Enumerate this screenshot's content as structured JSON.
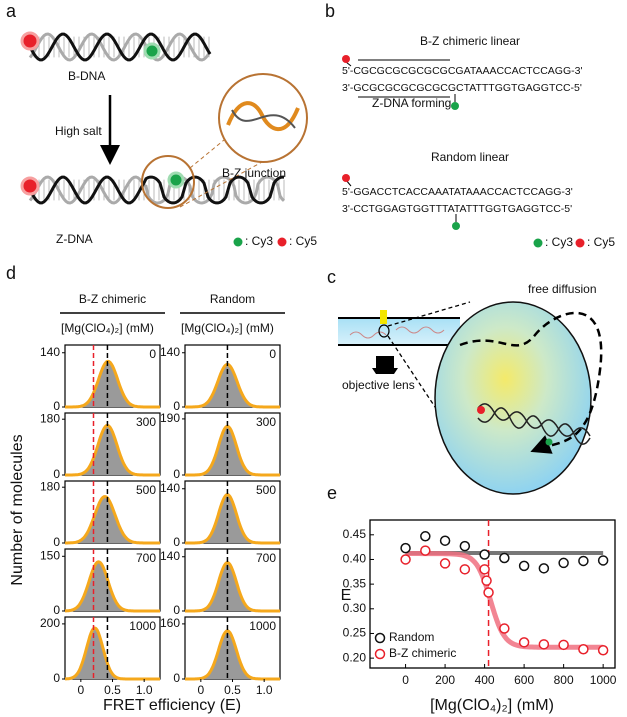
{
  "panel_a": {
    "label": "a",
    "top_dna": "B-DNA",
    "arrow_label": "High salt",
    "zoom_label": "B-Z junction",
    "bottom_dna": "Z-DNA",
    "legend": [
      ": Cy3",
      ": Cy5"
    ]
  },
  "panel_b": {
    "label": "b",
    "chimeric_title": "B-Z chimeric linear",
    "chimeric_top": "5'-CGCGCGCGCGCGCGATAAACCACTCCAGG-3'",
    "chimeric_bottom": "3'-GCGCGCGCGCGCGCTATTTGGTGAGGTCC-5'",
    "z_forming": "Z-DNA forming",
    "random_title": "Random linear",
    "random_top": "5'-GGACCTCACCAAATATAAACCACTCCAGG-3'",
    "random_bottom": "3'-CCTGGAGTGGTTTATATTTGGTGAGGTCC-5'",
    "legend": [
      ": Cy3",
      ": Cy5"
    ]
  },
  "panel_c": {
    "label": "c",
    "title": "free diffusion",
    "lens": "objective lens"
  },
  "panel_d": {
    "label": "d",
    "y_title": "Number of molecules",
    "x_title": "FRET efficiency (E)",
    "xlim": [
      -0.25,
      1.25
    ],
    "xticks": [
      0,
      0.5,
      {
        "value": 1,
        "label": "1.0"
      }
    ],
    "columns": [
      {
        "title": "B-Z chimeric",
        "conc_label": "[Mg(ClO₄)₂] (mM)",
        "black_line": 0.42,
        "red_line": 0.2,
        "plots": [
          {
            "conc": 0,
            "ylim": [
              0,
              160
            ],
            "yticks": [
              0,
              140
            ],
            "mean": 0.43,
            "sigma": 0.15,
            "peak": 118
          },
          {
            "conc": 300,
            "ylim": [
              0,
              200
            ],
            "yticks": [
              0,
              180
            ],
            "mean": 0.42,
            "sigma": 0.15,
            "peak": 160
          },
          {
            "conc": 500,
            "ylim": [
              0,
              200
            ],
            "yticks": [
              0,
              180
            ],
            "mean": 0.38,
            "sigma": 0.16,
            "peak": 150
          },
          {
            "conc": 700,
            "ylim": [
              0,
              170
            ],
            "yticks": [
              0,
              150
            ],
            "mean": 0.28,
            "sigma": 0.15,
            "peak": 135
          },
          {
            "conc": 1000,
            "ylim": [
              0,
              225
            ],
            "yticks": [
              0,
              200
            ],
            "mean": 0.22,
            "sigma": 0.13,
            "peak": 185
          }
        ]
      },
      {
        "title": "Random",
        "conc_label": "[Mg(ClO₄)₂] (mM)",
        "black_line": 0.42,
        "plots": [
          {
            "conc": 0,
            "ylim": [
              0,
              160
            ],
            "yticks": [
              0,
              140
            ],
            "mean": 0.42,
            "sigma": 0.15,
            "peak": 110
          },
          {
            "conc": 300,
            "ylim": [
              0,
              210
            ],
            "yticks": [
              0,
              190
            ],
            "mean": 0.42,
            "sigma": 0.14,
            "peak": 165
          },
          {
            "conc": 500,
            "ylim": [
              0,
              160
            ],
            "yticks": [
              0,
              140
            ],
            "mean": 0.42,
            "sigma": 0.14,
            "peak": 125
          },
          {
            "conc": 700,
            "ylim": [
              0,
              160
            ],
            "yticks": [
              0,
              140
            ],
            "mean": 0.42,
            "sigma": 0.14,
            "peak": 125
          },
          {
            "conc": 1000,
            "ylim": [
              0,
              180
            ],
            "yticks": [
              0,
              160
            ],
            "mean": 0.42,
            "sigma": 0.14,
            "peak": 140
          }
        ]
      }
    ]
  },
  "chart_data": {
    "type": "scatter",
    "panel_label": "e",
    "x_label": "[Mg(ClO₄)₂] (mM)",
    "y_label": "E",
    "xlim": [
      -180,
      1060
    ],
    "ylim": [
      0.18,
      0.48
    ],
    "xticks": [
      0,
      200,
      400,
      600,
      800,
      1000
    ],
    "yticks": [
      {
        "value": 0.2,
        "label": "0.20"
      },
      0.25,
      {
        "value": 0.3,
        "label": "0.30"
      },
      0.35,
      {
        "value": 0.4,
        "label": "0.40"
      },
      0.45
    ],
    "series": [
      {
        "name": "Random",
        "color": "#111111",
        "x": [
          0,
          100,
          200,
          300,
          400,
          500,
          600,
          700,
          800,
          900,
          1000
        ],
        "values": [
          0.423,
          0.447,
          0.438,
          0.427,
          0.41,
          0.403,
          0.387,
          0.382,
          0.393,
          0.397,
          0.398
        ]
      },
      {
        "name": "B-Z chimeric",
        "color": "#e8202a",
        "x": [
          0,
          100,
          200,
          300,
          400,
          410,
          420,
          500,
          600,
          700,
          800,
          900,
          1000
        ],
        "values": [
          0.4,
          0.418,
          0.392,
          0.38,
          0.38,
          0.357,
          0.333,
          0.26,
          0.232,
          0.228,
          0.227,
          0.218,
          0.216
        ]
      }
    ],
    "random_fit": {
      "level": 0.413,
      "color": "#777777"
    },
    "fit": {
      "top": 0.412,
      "bottom": 0.222,
      "midpoint": 430,
      "slope": 35,
      "color": "#f07080"
    },
    "transition_line": 420
  }
}
